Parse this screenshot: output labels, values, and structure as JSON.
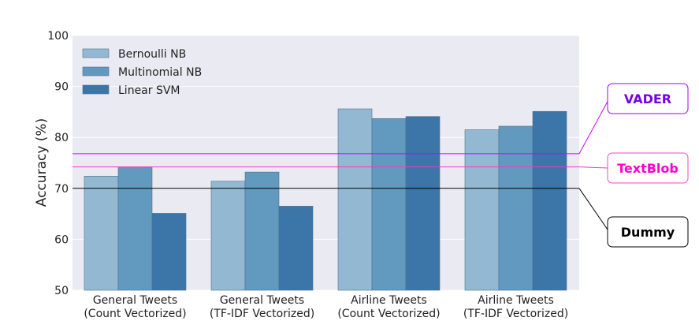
{
  "chart_data": {
    "type": "bar",
    "ylabel": "Accuracy (%)",
    "ylim": [
      50,
      100
    ],
    "yticks": [
      50,
      60,
      70,
      80,
      90,
      100
    ],
    "grid": true,
    "legend_position": "top-left",
    "categories": [
      [
        "General Tweets",
        "(Count Vectorized)"
      ],
      [
        "General Tweets",
        "(TF-IDF Vectorized)"
      ],
      [
        "Airline Tweets",
        "(Count Vectorized)"
      ],
      [
        "Airline Tweets",
        "(TF-IDF Vectorized)"
      ]
    ],
    "series": [
      {
        "name": "Bernoulli NB",
        "color": "#93b9d2",
        "values": [
          72.4,
          71.4,
          85.6,
          81.5
        ]
      },
      {
        "name": "Multinomial NB",
        "color": "#6199bf",
        "values": [
          74.2,
          73.2,
          83.7,
          82.2
        ]
      },
      {
        "name": "Linear SVM",
        "color": "#3c75a7",
        "values": [
          65.1,
          66.5,
          84.1,
          85.1
        ]
      }
    ],
    "reference_lines": [
      {
        "name": "VADER",
        "value": 76.8,
        "color": "#cc00ff",
        "text_color": "#7700ee",
        "box_border": "#aa00ee"
      },
      {
        "name": "TextBlob",
        "value": 74.2,
        "color": "#ff33cc",
        "text_color": "#ff00cc",
        "box_border": "#ff44cc"
      },
      {
        "name": "Dummy",
        "value": 70.0,
        "color": "#000000",
        "text_color": "#000000",
        "box_border": "#000000"
      }
    ]
  }
}
